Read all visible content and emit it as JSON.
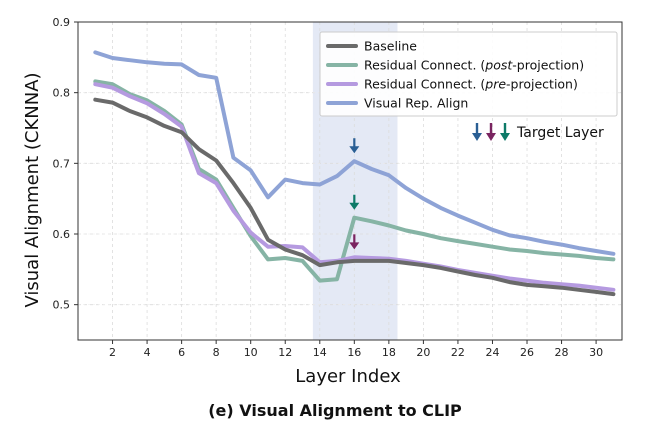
{
  "caption": "(e) Visual Alignment to CLIP",
  "chart_data": {
    "type": "line",
    "xlabel": "Layer Index",
    "ylabel": "Visual Alignment (CKNNA)",
    "xlim": [
      0,
      31.5
    ],
    "ylim": [
      0.45,
      0.9
    ],
    "xticks": [
      2,
      4,
      6,
      8,
      10,
      12,
      14,
      16,
      18,
      20,
      22,
      24,
      26,
      28,
      30
    ],
    "yticks": [
      0.5,
      0.6,
      0.7,
      0.8,
      0.9
    ],
    "ytick_labels": [
      "0.5",
      "0.6",
      "0.7",
      "0.8",
      "0.9"
    ],
    "grid": true,
    "highlight_region": {
      "x_start": 13.6,
      "x_end": 18.5,
      "color": "#e4e9f5"
    },
    "series": [
      {
        "name": "Visual Rep. Align",
        "color": "#8ea3d6",
        "x": [
          1,
          2,
          3,
          4,
          5,
          6,
          7,
          8,
          9,
          10,
          11,
          12,
          13,
          14,
          15,
          16,
          17,
          18,
          19,
          20,
          21,
          22,
          23,
          24,
          25,
          26,
          27,
          28,
          29,
          30,
          31
        ],
        "values": [
          0.857,
          0.849,
          0.846,
          0.843,
          0.841,
          0.84,
          0.825,
          0.821,
          0.708,
          0.69,
          0.652,
          0.677,
          0.672,
          0.67,
          0.682,
          0.703,
          0.692,
          0.683,
          0.665,
          0.65,
          0.637,
          0.626,
          0.616,
          0.606,
          0.598,
          0.594,
          0.589,
          0.585,
          0.58,
          0.576,
          0.572
        ]
      },
      {
        "name": "Residual Connect. (post-projection)",
        "color": "#86b4a5",
        "x": [
          1,
          2,
          3,
          4,
          5,
          6,
          7,
          8,
          9,
          10,
          11,
          12,
          13,
          14,
          15,
          16,
          17,
          18,
          19,
          20,
          21,
          22,
          23,
          24,
          25,
          26,
          27,
          28,
          29,
          30,
          31
        ],
        "values": [
          0.816,
          0.812,
          0.798,
          0.789,
          0.774,
          0.755,
          0.692,
          0.677,
          0.637,
          0.597,
          0.564,
          0.566,
          0.562,
          0.534,
          0.536,
          0.623,
          0.618,
          0.612,
          0.605,
          0.6,
          0.594,
          0.59,
          0.586,
          0.582,
          0.578,
          0.576,
          0.573,
          0.571,
          0.569,
          0.566,
          0.564
        ]
      },
      {
        "name": "Residual Connect. (pre-projection)",
        "color": "#b59ae0",
        "x": [
          1,
          2,
          3,
          4,
          5,
          6,
          7,
          8,
          9,
          10,
          11,
          12,
          13,
          14,
          15,
          16,
          17,
          18,
          19,
          20,
          21,
          22,
          23,
          24,
          25,
          26,
          27,
          28,
          29,
          30,
          31
        ],
        "values": [
          0.812,
          0.807,
          0.795,
          0.785,
          0.77,
          0.752,
          0.686,
          0.672,
          0.633,
          0.602,
          0.582,
          0.583,
          0.581,
          0.56,
          0.562,
          0.567,
          0.566,
          0.565,
          0.562,
          0.558,
          0.554,
          0.549,
          0.545,
          0.541,
          0.537,
          0.534,
          0.531,
          0.529,
          0.527,
          0.524,
          0.521
        ]
      },
      {
        "name": "Baseline",
        "color": "#6a6a6a",
        "x": [
          1,
          2,
          3,
          4,
          5,
          6,
          7,
          8,
          9,
          10,
          11,
          12,
          13,
          14,
          15,
          16,
          17,
          18,
          19,
          20,
          21,
          22,
          23,
          24,
          25,
          26,
          27,
          28,
          29,
          30,
          31
        ],
        "values": [
          0.79,
          0.786,
          0.774,
          0.765,
          0.753,
          0.744,
          0.72,
          0.704,
          0.672,
          0.637,
          0.592,
          0.578,
          0.57,
          0.556,
          0.56,
          0.562,
          0.562,
          0.562,
          0.559,
          0.556,
          0.552,
          0.547,
          0.542,
          0.538,
          0.532,
          0.528,
          0.526,
          0.524,
          0.521,
          0.518,
          0.515
        ]
      }
    ],
    "legend": {
      "position": "top-right",
      "entries": [
        {
          "label": "Baseline",
          "color": "#6a6a6a",
          "pre": "Baseline",
          "italic": "",
          "post": ""
        },
        {
          "label": "Residual Connect. (post-projection)",
          "color": "#86b4a5",
          "pre": "Residual Connect. (",
          "italic": "post",
          "post": "-projection)"
        },
        {
          "label": "Residual Connect. (pre-projection)",
          "color": "#b59ae0",
          "pre": "Residual Connect. (",
          "italic": "pre",
          "post": "-projection)"
        },
        {
          "label": "Visual Rep. Align",
          "color": "#8ea3d6",
          "pre": "Visual Rep. Align",
          "italic": "",
          "post": ""
        }
      ]
    },
    "target_markers": {
      "label": "Target Layer",
      "layer": 16,
      "arrows": [
        {
          "series": "Visual Rep. Align",
          "color": "#2a5f94",
          "y": 0.703
        },
        {
          "series": "Residual Connect. (post-projection)",
          "color": "#0d7a68",
          "y": 0.623
        },
        {
          "series": "Residual Connect. (pre-projection)",
          "color": "#7a2460",
          "y": 0.567
        }
      ],
      "legend_arrow_colors": [
        "#2a5f94",
        "#7a2460",
        "#0d7a68"
      ]
    }
  }
}
